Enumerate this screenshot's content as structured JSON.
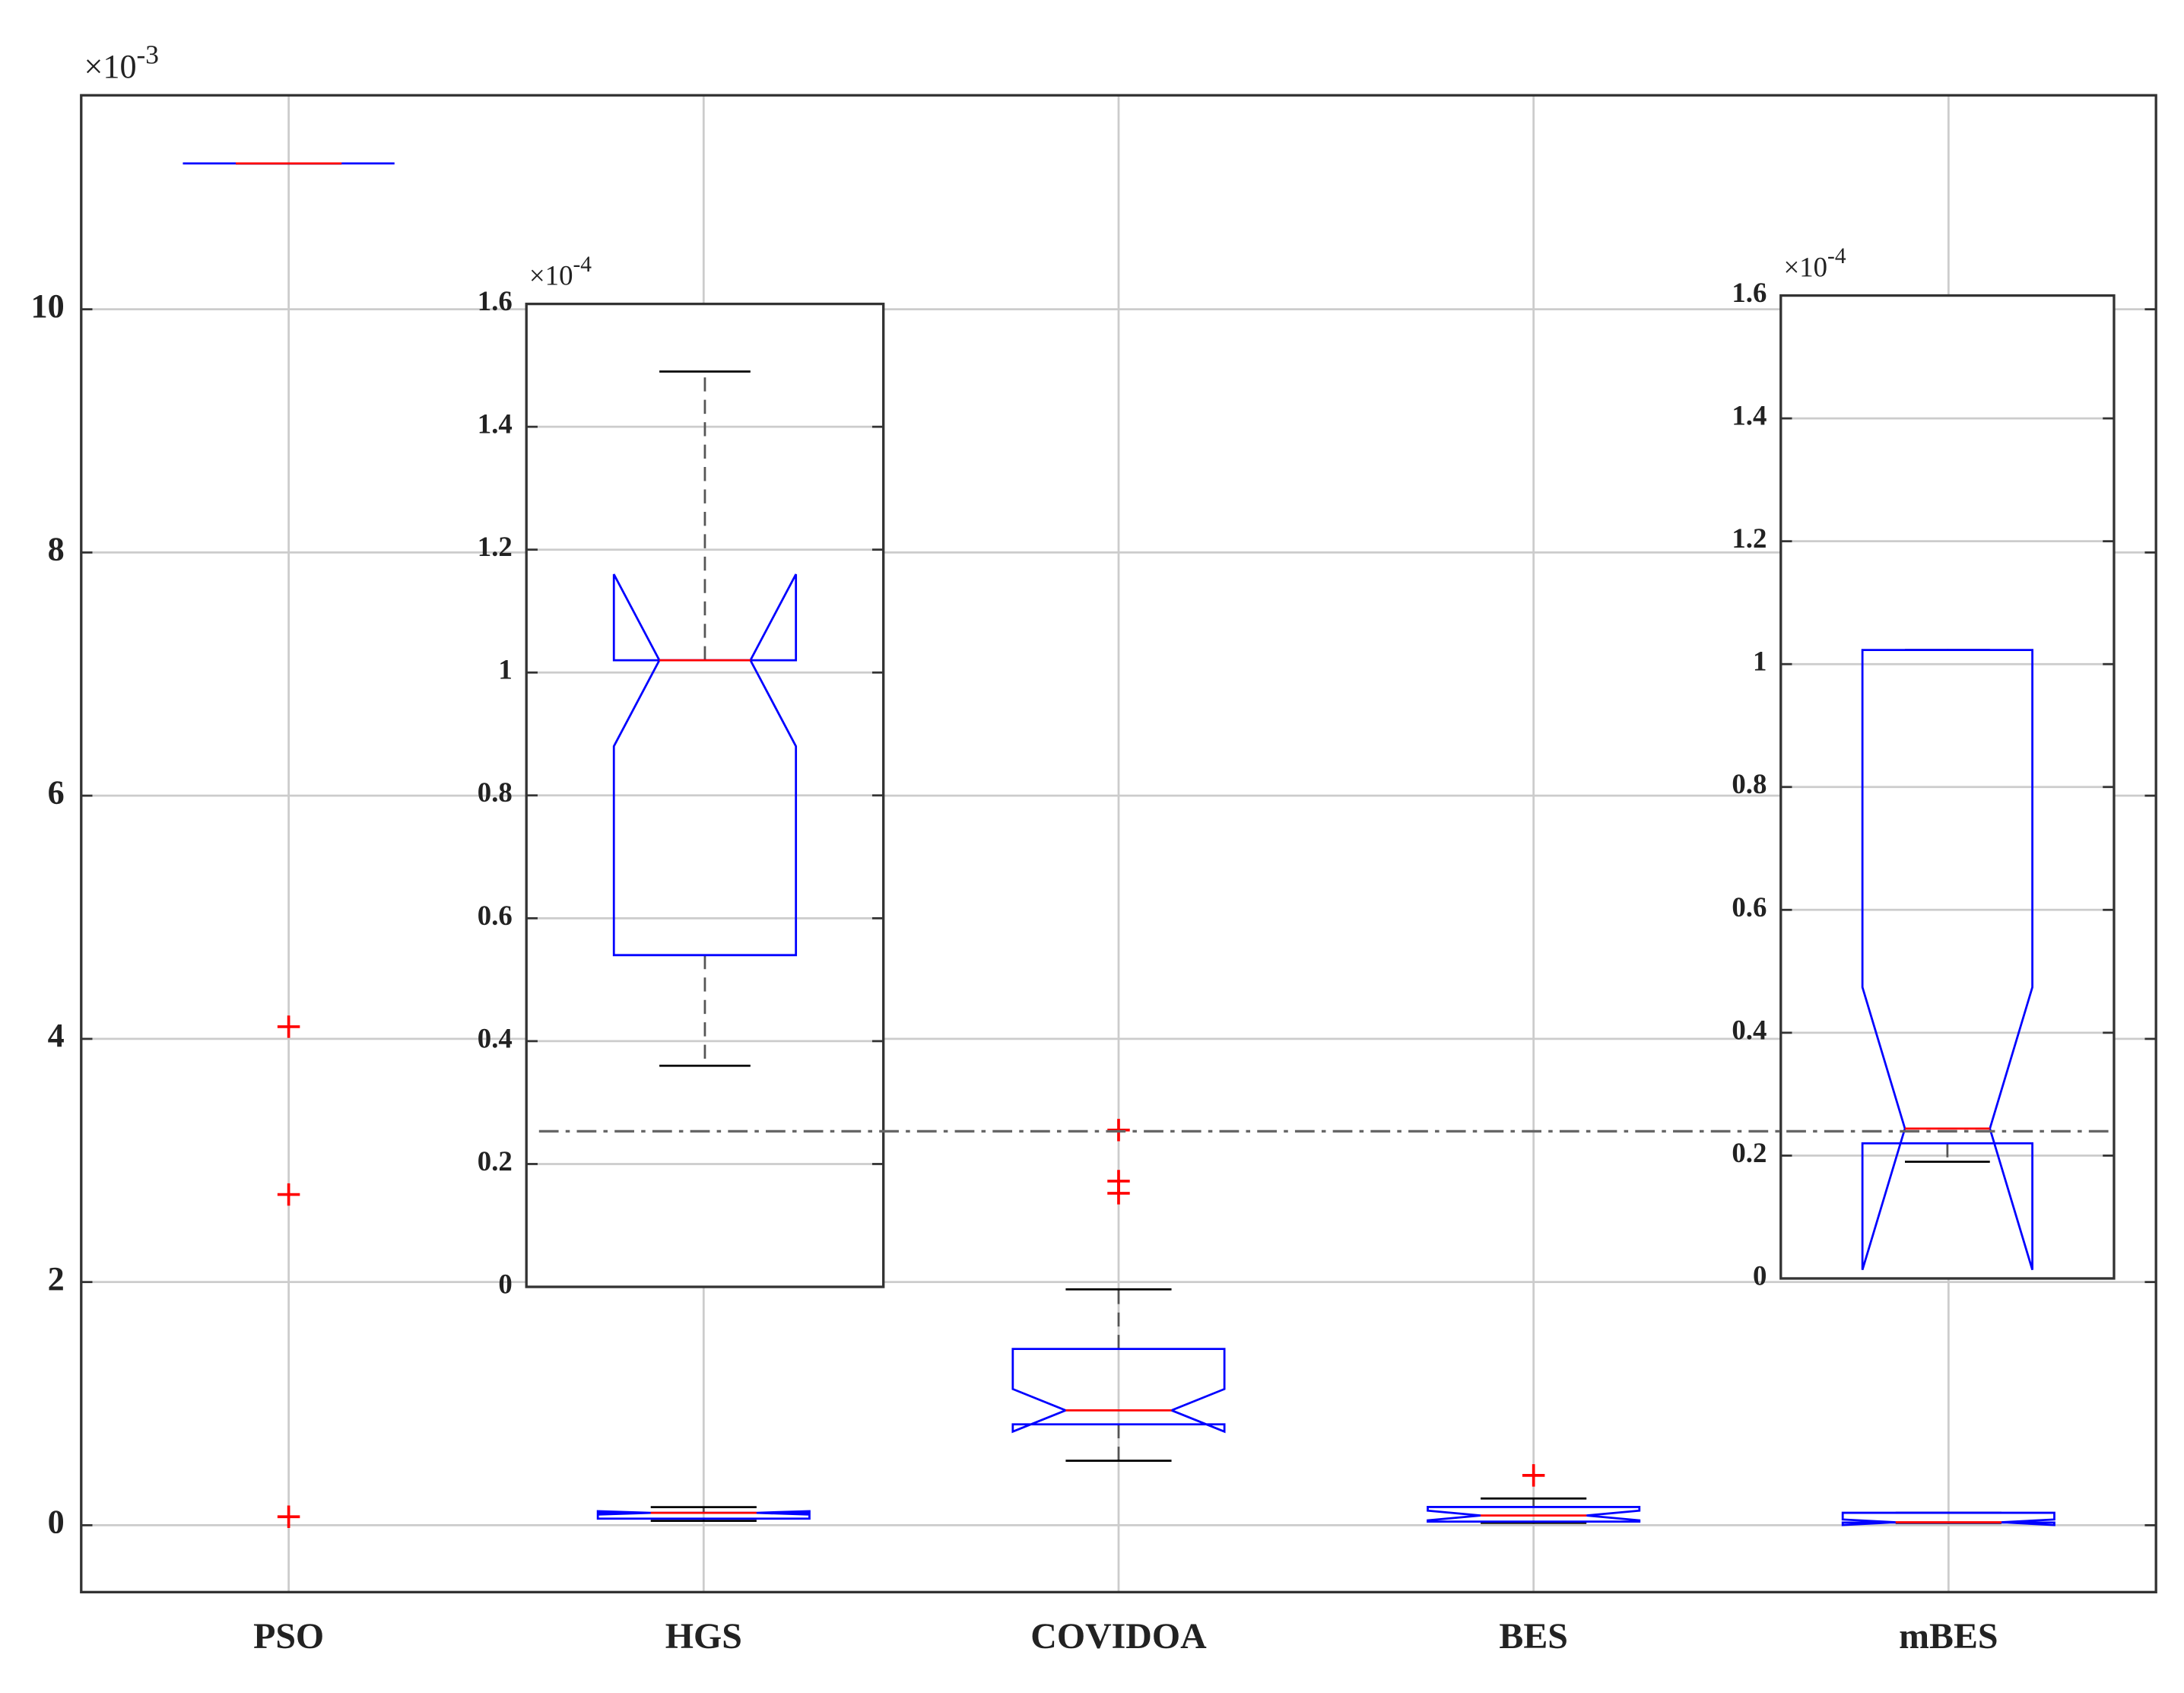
{
  "chart_data": [
    {
      "type": "box",
      "multiplier": "×10",
      "exponent": "-3",
      "categories": [
        "PSO",
        "HGS",
        "COVIDOA",
        "BES",
        "mBES"
      ],
      "ylim": [
        -0.55,
        11.76
      ],
      "yticks": [
        0,
        2,
        4,
        6,
        8,
        10
      ],
      "grid": true,
      "xgrid": true,
      "box_color": "#0000ff",
      "median_color": "#ff0000",
      "whisker_color": "#000000",
      "outlier_color": "#ff0000",
      "reference_line": 3.24,
      "boxes": [
        {
          "q1": 11.2,
          "median": 11.2,
          "q3": 11.2,
          "whisker_low": 11.2,
          "whisker_high": 11.2,
          "notch": [
            11.2,
            11.2
          ],
          "outliers": [
            4.1,
            2.72,
            0.07
          ]
        },
        {
          "q1": 0.054,
          "median": 0.102,
          "q3": 0.102,
          "whisker_low": 0.036,
          "whisker_high": 0.149,
          "notch": [
            0.088,
            0.116
          ],
          "outliers": []
        },
        {
          "q1": 0.83,
          "median": 0.945,
          "q3": 1.45,
          "whisker_low": 0.53,
          "whisker_high": 1.94,
          "notch": [
            0.77,
            1.12
          ],
          "outliers": [
            3.25,
            2.83,
            2.73
          ]
        },
        {
          "q1": 0.03,
          "median": 0.08,
          "q3": 0.15,
          "whisker_low": 0.02,
          "whisker_high": 0.22,
          "notch": [
            0.04,
            0.12
          ],
          "outliers": [
            0.41
          ]
        },
        {
          "q1": 0.022,
          "median": 0.0244,
          "q3": 0.1023,
          "whisker_low": 0.019,
          "whisker_high": 0.1023,
          "notch": [
            0.0014,
            0.0474
          ],
          "outliers": []
        }
      ]
    },
    {
      "type": "box",
      "multiplier": "×10",
      "exponent": "-4",
      "categories": [
        null
      ],
      "ylim": [
        0,
        1.6
      ],
      "yticks": [
        0,
        0.2,
        0.4,
        0.6,
        0.8,
        1,
        1.2,
        1.4,
        1.6
      ],
      "grid": true,
      "xgrid": false,
      "box_color": "#0000ff",
      "median_color": "#ff0000",
      "whisker_color": "#000000",
      "outlier_color": "#ff0000",
      "boxes": [
        {
          "q1": 0.54,
          "median": 1.02,
          "q3": 1.02,
          "whisker_low": 0.36,
          "whisker_high": 1.49,
          "notch": [
            0.88,
            1.16
          ],
          "outliers": []
        }
      ]
    },
    {
      "type": "box",
      "multiplier": "×10",
      "exponent": "-4",
      "categories": [
        null
      ],
      "ylim": [
        0,
        1.6
      ],
      "yticks": [
        0,
        0.2,
        0.4,
        0.6,
        0.8,
        1,
        1.2,
        1.4,
        1.6
      ],
      "grid": true,
      "xgrid": false,
      "box_color": "#0000ff",
      "median_color": "#ff0000",
      "whisker_color": "#000000",
      "outlier_color": "#ff0000",
      "boxes": [
        {
          "q1": 0.22,
          "median": 0.244,
          "q3": 1.023,
          "whisker_low": 0.19,
          "whisker_high": 1.023,
          "notch": [
            0.014,
            0.474
          ],
          "outliers": []
        }
      ]
    }
  ]
}
